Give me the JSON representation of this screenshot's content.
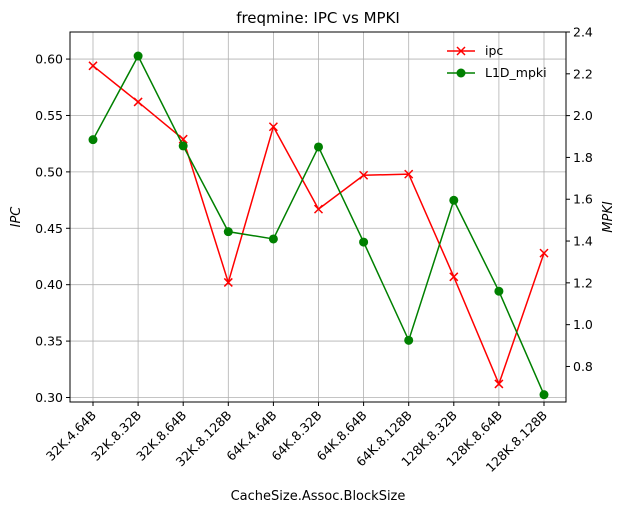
{
  "chart_data": {
    "type": "line",
    "title": "freqmine: IPC vs MPKI",
    "xlabel": "CacheSize.Assoc.BlockSize",
    "ylabel_left": "IPC",
    "ylabel_right": "MPKI",
    "categories": [
      "32K.4.64B",
      "32K.8.32B",
      "32K.8.64B",
      "32K.8.128B",
      "64K.4.64B",
      "64K.8.32B",
      "64K.8.64B",
      "64K.8.128B",
      "128K.8.32B",
      "128K.8.64B",
      "128K.8.128B"
    ],
    "ylim_left": [
      0.296,
      0.624
    ],
    "ylim_right": [
      0.63,
      2.4
    ],
    "yticks_left": [
      "0.30",
      "0.35",
      "0.40",
      "0.45",
      "0.50",
      "0.55",
      "0.60"
    ],
    "yticks_right": [
      "0.8",
      "1.0",
      "1.2",
      "1.4",
      "1.6",
      "1.8",
      "2.0",
      "2.2",
      "2.4"
    ],
    "grid": true,
    "legend_position": "top-right",
    "series": [
      {
        "name": "ipc",
        "axis": "left",
        "color": "#ff0000",
        "marker": "x",
        "values": [
          0.594,
          0.562,
          0.529,
          0.402,
          0.54,
          0.467,
          0.497,
          0.498,
          0.407,
          0.312,
          0.428
        ]
      },
      {
        "name": "L1D_mpki",
        "axis": "right",
        "color": "#008000",
        "marker": "o",
        "values": [
          1.885,
          2.285,
          1.855,
          1.445,
          1.41,
          1.85,
          1.395,
          0.925,
          1.595,
          1.16,
          0.665
        ]
      }
    ]
  }
}
